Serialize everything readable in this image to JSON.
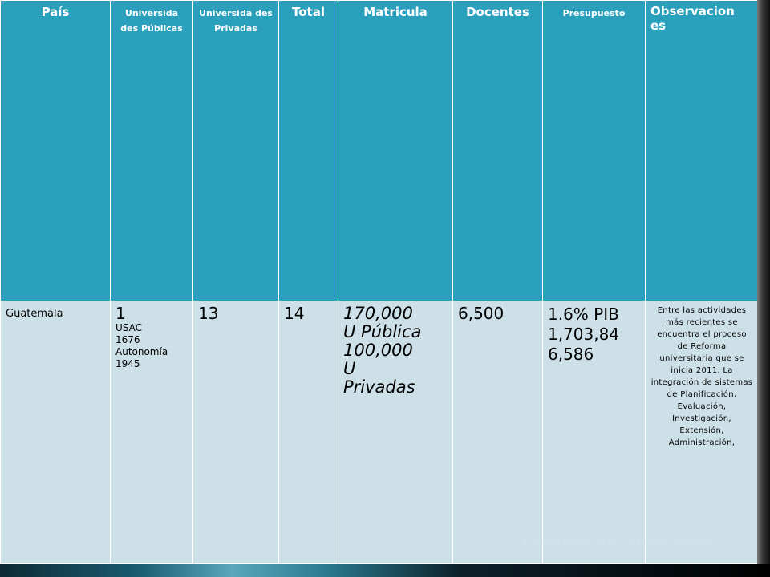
{
  "table": {
    "headers": [
      "País",
      "Universida des Públicas",
      "Universida des Privadas",
      "Total",
      "Matricula",
      "Docentes",
      "Presupuesto",
      "Observacion es"
    ],
    "row": {
      "country": "Guatemala",
      "public_count": "1",
      "public_details": [
        "USAC",
        "1676",
        "Autonomía",
        "1945"
      ],
      "private_count": "13",
      "total": "14",
      "matricula": [
        "170,000",
        "U Pública",
        "100,000",
        "U",
        "Privadas"
      ],
      "docentes": "6,500",
      "presupuesto": [
        "1.6% PIB",
        "1,703,84",
        "6,586"
      ],
      "observaciones": "Entre las actividades más recientes se encuentra el proceso de Reforma universitaria que se inicia 2011. La integración de sistemas de Planificación, Evaluación, Investigación, Extensión, Administración,"
    }
  },
  "footer": {
    "watermark": "Programa de cursos libres"
  }
}
